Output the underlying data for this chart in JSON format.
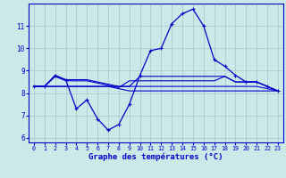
{
  "xlabel": "Graphe des températures (°C)",
  "background_color": "#cce8e8",
  "grid_color": "#aacccc",
  "line_color": "#0000cc",
  "xlim": [
    -0.5,
    23.5
  ],
  "ylim": [
    5.8,
    12.0
  ],
  "yticks": [
    6,
    7,
    8,
    9,
    10,
    11
  ],
  "xticks": [
    0,
    1,
    2,
    3,
    4,
    5,
    6,
    7,
    8,
    9,
    10,
    11,
    12,
    13,
    14,
    15,
    16,
    17,
    18,
    19,
    20,
    21,
    22,
    23
  ],
  "line1_x": [
    0,
    1,
    2,
    3,
    4,
    5,
    6,
    7,
    8,
    9,
    10,
    11,
    12,
    13,
    14,
    15,
    16,
    17,
    18,
    19,
    20,
    21,
    22,
    23
  ],
  "line1_y": [
    8.3,
    8.3,
    8.8,
    8.6,
    7.3,
    7.7,
    6.85,
    6.35,
    6.6,
    7.5,
    8.8,
    9.9,
    10.0,
    11.1,
    11.55,
    11.75,
    11.0,
    9.5,
    9.2,
    8.8,
    8.5,
    8.5,
    8.3,
    8.1
  ],
  "line2_x": [
    0,
    1,
    2,
    3,
    4,
    5,
    6,
    7,
    8,
    9,
    10,
    11,
    12,
    13,
    14,
    15,
    16,
    17,
    18,
    19,
    20,
    21,
    22,
    23
  ],
  "line2_y": [
    8.3,
    8.3,
    8.75,
    8.6,
    8.6,
    8.6,
    8.5,
    8.4,
    8.3,
    8.3,
    8.75,
    8.75,
    8.75,
    8.75,
    8.75,
    8.75,
    8.75,
    8.75,
    8.75,
    8.5,
    8.5,
    8.5,
    8.3,
    8.1
  ],
  "line3_x": [
    0,
    1,
    2,
    3,
    4,
    5,
    6,
    7,
    8,
    9,
    10,
    11,
    12,
    13,
    14,
    15,
    16,
    17,
    18,
    19,
    20,
    21,
    22,
    23
  ],
  "line3_y": [
    8.3,
    8.3,
    8.3,
    8.3,
    8.3,
    8.3,
    8.3,
    8.3,
    8.3,
    8.3,
    8.3,
    8.3,
    8.3,
    8.3,
    8.3,
    8.3,
    8.3,
    8.3,
    8.3,
    8.3,
    8.3,
    8.3,
    8.2,
    8.1
  ],
  "line4_x": [
    0,
    1,
    2,
    3,
    4,
    5,
    6,
    7,
    8,
    9,
    10,
    11,
    12,
    13,
    14,
    15,
    16,
    17,
    18,
    19,
    20,
    21,
    22,
    23
  ],
  "line4_y": [
    8.3,
    8.3,
    8.3,
    8.3,
    8.3,
    8.3,
    8.3,
    8.3,
    8.2,
    8.1,
    8.1,
    8.1,
    8.1,
    8.1,
    8.1,
    8.1,
    8.1,
    8.1,
    8.1,
    8.1,
    8.1,
    8.1,
    8.1,
    8.1
  ],
  "line5_x": [
    0,
    1,
    2,
    3,
    4,
    5,
    6,
    7,
    8,
    9,
    10,
    11,
    12,
    13,
    14,
    15,
    16,
    17,
    18,
    19,
    20,
    21,
    22,
    23
  ],
  "line5_y": [
    8.3,
    8.3,
    8.75,
    8.55,
    8.55,
    8.55,
    8.45,
    8.35,
    8.25,
    8.55,
    8.55,
    8.55,
    8.55,
    8.55,
    8.55,
    8.55,
    8.55,
    8.55,
    8.75,
    8.5,
    8.5,
    8.5,
    8.3,
    8.1
  ]
}
